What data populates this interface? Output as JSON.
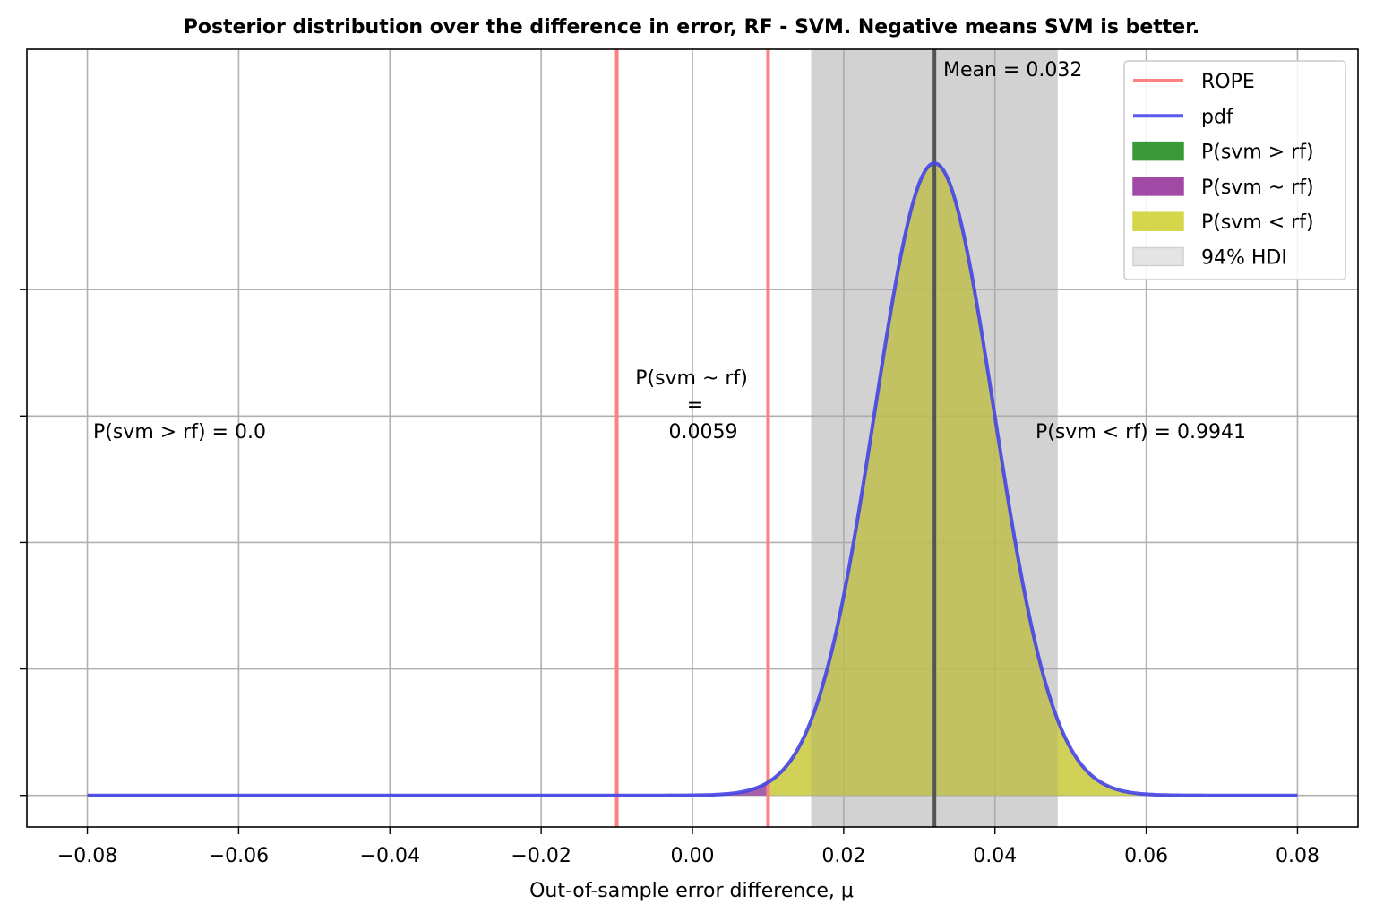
{
  "chart_data": {
    "type": "area",
    "title": "Posterior distribution over the difference in error, RF - SVM. Negative means SVM is better.",
    "xlabel": "Out-of-sample error difference, μ",
    "ylabel": "",
    "xlim": [
      -0.088,
      0.088
    ],
    "ylim": [
      -0.05,
      1.18
    ],
    "x_ticks": [
      -0.08,
      -0.06,
      -0.04,
      -0.02,
      0.0,
      0.02,
      0.04,
      0.06,
      0.08
    ],
    "x_tick_labels": [
      "−0.08",
      "−0.06",
      "−0.04",
      "−0.02",
      "0.00",
      "0.02",
      "0.04",
      "0.06",
      "0.08"
    ],
    "y_ticks": [
      0.0,
      0.2,
      0.4,
      0.6,
      0.8
    ],
    "grid": true,
    "pdf": {
      "mean": 0.032,
      "sd": 0.0079,
      "x_range": [
        -0.08,
        0.08
      ],
      "peak": 1.0
    },
    "rope": [
      -0.01,
      0.01
    ],
    "hdi_94": [
      0.0157,
      0.0483
    ],
    "mean_line": 0.032,
    "mean_label": "Mean = 0.032",
    "annotations": {
      "svm_gt_rf": "P(svm > rf) = 0.0",
      "svm_eq_rf_line1": "P(svm ~ rf)",
      "svm_eq_rf_line2": "=",
      "svm_eq_rf_line3": "0.0059",
      "svm_lt_rf": "P(svm < rf) = 0.9941"
    },
    "probabilities": {
      "svm_gt_rf": 0.0,
      "svm_eq_rf": 0.0059,
      "svm_lt_rf": 0.9941
    },
    "legend": {
      "placement": "top-right",
      "entries": [
        {
          "label": "ROPE",
          "kind": "line",
          "color": "#ff8080"
        },
        {
          "label": "pdf",
          "kind": "line",
          "color": "#5a5af0"
        },
        {
          "label": "P(svm > rf)",
          "kind": "patch",
          "color": "#3a9a3a"
        },
        {
          "label": "P(svm ~ rf)",
          "kind": "patch",
          "color": "#a04aa6"
        },
        {
          "label": "P(svm < rf)",
          "kind": "patch",
          "color": "#d6d64a"
        },
        {
          "label": "94% HDI",
          "kind": "patch",
          "color": "#e4e4e4"
        }
      ]
    },
    "colors": {
      "rope": "#ff8080",
      "pdf": "#4444e6",
      "svm_gt_rf": "#2e9a2e",
      "svm_eq_rf": "#8e3a9a",
      "svm_lt_rf": "#c9c93a",
      "hdi": "#e2e2e2",
      "mean_line": "#555555",
      "grid": "#b0b0b0"
    }
  }
}
